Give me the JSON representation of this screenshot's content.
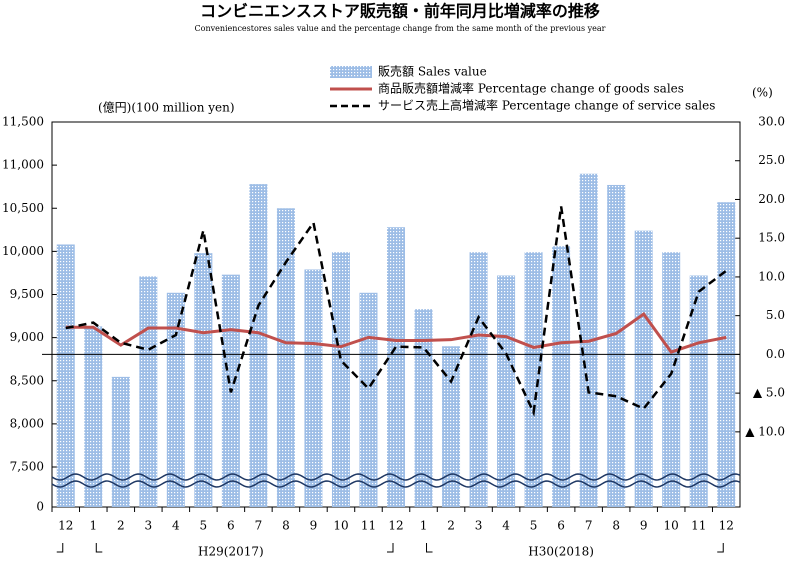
{
  "chart_data": {
    "type": "bar-line",
    "title": "コンビニエンスストア販売額・前年同月比増減率の推移",
    "subtitle": "Conveniencestores sales value and the percentage change from the same month of the previous year",
    "y_label": "(億円)(100 million yen)",
    "y2_label": "(%)",
    "categories": [
      "12",
      "1",
      "2",
      "3",
      "4",
      "5",
      "6",
      "7",
      "8",
      "9",
      "10",
      "11",
      "12",
      "1",
      "2",
      "3",
      "4",
      "5",
      "6",
      "7",
      "8",
      "9",
      "10",
      "11",
      "12"
    ],
    "year_labels": [
      "H29(2017)",
      "H30(2018)"
    ],
    "series": [
      {
        "name": "販売額 Sales value",
        "type": "bar",
        "color": "#8fb3e0",
        "values": [
          10080,
          9130,
          8545,
          9710,
          9520,
          9980,
          9730,
          10780,
          10500,
          9790,
          9990,
          9520,
          10280,
          9330,
          8900,
          9990,
          9720,
          9990,
          10060,
          10900,
          10770,
          10240,
          9990,
          9720,
          10570
        ]
      },
      {
        "name": "商品販売額増減率 Percentage change of goods sales",
        "type": "line",
        "axis": "y2",
        "color": "#c0504d",
        "values": [
          3.5,
          3.5,
          1.2,
          3.4,
          3.4,
          2.8,
          3.2,
          2.8,
          1.5,
          1.4,
          1.0,
          2.2,
          1.8,
          1.8,
          1.9,
          2.5,
          2.3,
          0.9,
          1.5,
          1.7,
          2.7,
          5.2,
          0.3,
          1.5,
          2.2
        ]
      },
      {
        "name": "サービス売上高増減率 Percentage change of service sales",
        "type": "line",
        "axis": "y2",
        "dashed": true,
        "color": "#000000",
        "values": [
          3.4,
          4.1,
          1.5,
          0.6,
          2.5,
          16.0,
          -4.9,
          6.3,
          11.9,
          17.0,
          -0.8,
          -4.4,
          1.0,
          0.9,
          -3.5,
          4.8,
          0.1,
          -7.5,
          19.1,
          -4.9,
          -5.4,
          -7.0,
          -2.5,
          8.1,
          10.8
        ]
      }
    ],
    "ylim": [
      0,
      11500
    ],
    "yticks": [
      0,
      {
        "value": 7500,
        "label": "7,500"
      },
      {
        "value": 8000,
        "label": "8,000"
      },
      {
        "value": 8500,
        "label": "8,500"
      },
      {
        "value": 9000,
        "label": "9,000"
      },
      {
        "value": 9500,
        "label": "9,500"
      },
      {
        "value": 10000,
        "label": "10,000"
      },
      {
        "value": 10500,
        "label": "10,500"
      },
      {
        "value": 11000,
        "label": "11,000"
      },
      {
        "value": 11500,
        "label": "11,500"
      }
    ],
    "y2lim": [
      -19.7,
      30
    ],
    "y2ticks": [
      {
        "value": -10,
        "label": "▲ 10.0"
      },
      {
        "value": -5,
        "label": "▲ 5.0"
      },
      {
        "value": 0,
        "label": "0.0"
      },
      {
        "value": 5,
        "label": "5.0"
      },
      {
        "value": 10,
        "label": "10.0"
      },
      {
        "value": 15,
        "label": "15.0"
      },
      {
        "value": 20,
        "label": "20.0"
      },
      {
        "value": 25,
        "label": "25.0"
      },
      {
        "value": 30,
        "label": "30.0"
      }
    ]
  }
}
